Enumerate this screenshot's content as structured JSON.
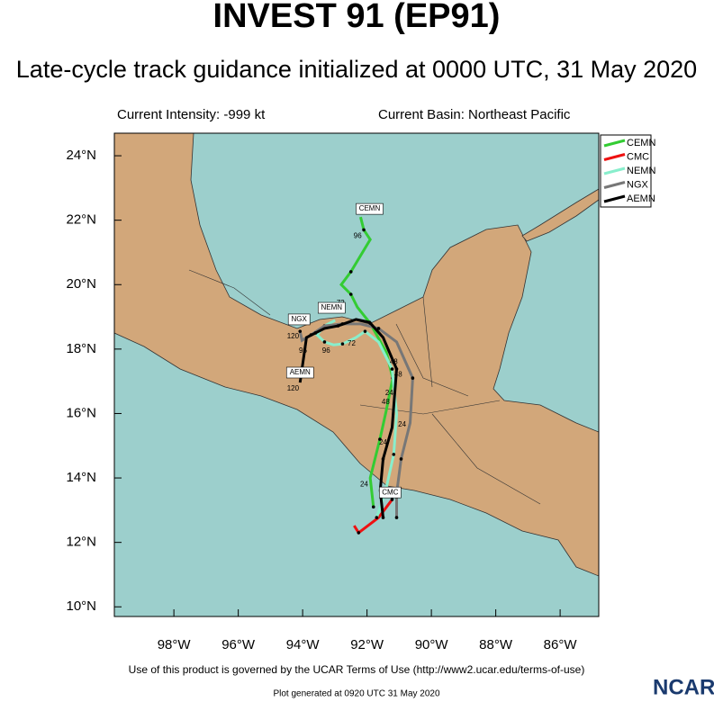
{
  "title": "INVEST 91 (EP91)",
  "subtitle": "Late-cycle track guidance initialized at 0000 UTC, 31 May 2020",
  "intensity": "Current Intensity: -999 kt",
  "basin": "Current Basin: Northeast Pacific",
  "map": {
    "lonlim": [
      -99.85,
      -84.8
    ],
    "latlim": [
      9.7,
      24.7
    ],
    "lonticks": [
      {
        "value": -98,
        "label": "98°W"
      },
      {
        "value": -96,
        "label": "96°W"
      },
      {
        "value": -94,
        "label": "94°W"
      },
      {
        "value": -92,
        "label": "92°W"
      },
      {
        "value": -90,
        "label": "90°W"
      },
      {
        "value": -88,
        "label": "88°W"
      },
      {
        "value": -86,
        "label": "86°W"
      }
    ],
    "latticks": [
      {
        "value": 24,
        "label": "24°N"
      },
      {
        "value": 22,
        "label": "22°N"
      },
      {
        "value": 20,
        "label": "20°N"
      },
      {
        "value": 18,
        "label": "18°N"
      },
      {
        "value": 16,
        "label": "16°N"
      },
      {
        "value": 14,
        "label": "14°N"
      },
      {
        "value": 12,
        "label": "12°N"
      },
      {
        "value": 10,
        "label": "10°N"
      }
    ]
  },
  "tracks": [
    {
      "name": "CEMN",
      "color": "#33cc33",
      "lon": [
        -91.8,
        -91.9,
        -91.6,
        -91.4,
        -91.2,
        -91.4,
        -91.9,
        -92.3,
        -92.5,
        -92.8,
        -92.5,
        -91.9,
        -92.1,
        -92.2
      ],
      "lat": [
        13.1,
        14.0,
        15.2,
        16.1,
        17.1,
        17.9,
        18.8,
        19.3,
        19.7,
        20.0,
        20.4,
        21.4,
        21.7,
        22.1
      ]
    },
    {
      "name": "CMC",
      "color": "#ee1111",
      "lon": [
        -91.22,
        -91.64,
        -92.26,
        -92.4
      ],
      "lat": [
        13.33,
        12.77,
        12.3,
        12.52
      ]
    },
    {
      "name": "NEMN",
      "color": "#88eecc",
      "lon": [
        -91.7,
        -91.42,
        -91.17,
        -91.08,
        -91.22,
        -91.64,
        -92.06,
        -92.34,
        -92.76,
        -93.04,
        -93.32,
        -93.55,
        -93.32,
        -92.99
      ],
      "lat": [
        12.77,
        13.61,
        14.73,
        15.98,
        17.38,
        18.22,
        18.55,
        18.36,
        18.16,
        18.13,
        18.22,
        18.44,
        18.72,
        18.89
      ]
    },
    {
      "name": "NGX",
      "color": "#777777",
      "lon": [
        -91.08,
        -91.08,
        -90.94,
        -90.66,
        -90.58,
        -91.08,
        -91.64,
        -92.2,
        -92.76,
        -93.32,
        -93.74,
        -94.02,
        -94.08
      ],
      "lat": [
        12.77,
        13.52,
        14.59,
        15.71,
        17.1,
        18.22,
        18.64,
        18.78,
        18.78,
        18.72,
        18.44,
        18.27,
        18.55
      ]
    },
    {
      "name": "AEMN",
      "color": "#000000",
      "lon": [
        -91.5,
        -91.59,
        -91.5,
        -91.22,
        -91.08,
        -91.5,
        -91.92,
        -92.34,
        -92.9,
        -93.32,
        -93.6,
        -93.88,
        -94.02,
        -94.08
      ],
      "lat": [
        12.77,
        13.61,
        14.59,
        15.57,
        17.38,
        18.36,
        18.83,
        18.92,
        18.72,
        18.64,
        18.5,
        18.36,
        17.38,
        16.96
      ]
    }
  ],
  "track_labels": [
    {
      "text": "CEMN",
      "lon": -91.92,
      "lat": 22.35
    },
    {
      "text": "NEMN",
      "lon": -93.1,
      "lat": 19.28
    },
    {
      "text": "NGX",
      "lon": -94.11,
      "lat": 18.92
    },
    {
      "text": "AEMN",
      "lon": -94.08,
      "lat": 17.27
    },
    {
      "text": "CMC",
      "lon": -91.28,
      "lat": 13.55
    }
  ],
  "hour_labels": [
    {
      "text": "96",
      "lon": -92.29,
      "lat": 21.51
    },
    {
      "text": "72",
      "lon": -92.82,
      "lat": 19.42
    },
    {
      "text": "24",
      "lon": -92.09,
      "lat": 13.8
    },
    {
      "text": "24",
      "lon": -91.5,
      "lat": 15.09
    },
    {
      "text": "48",
      "lon": -91.42,
      "lat": 16.35
    },
    {
      "text": "48",
      "lon": -91.17,
      "lat": 17.6
    },
    {
      "text": "24",
      "lon": -90.91,
      "lat": 15.65
    },
    {
      "text": "72",
      "lon": -92.48,
      "lat": 18.16
    },
    {
      "text": "96",
      "lon": -93.27,
      "lat": 17.94
    },
    {
      "text": "120",
      "lon": -94.3,
      "lat": 18.39
    },
    {
      "text": "96",
      "lon": -93.99,
      "lat": 17.94
    },
    {
      "text": "120",
      "lon": -94.3,
      "lat": 16.77
    },
    {
      "text": "48",
      "lon": -91.03,
      "lat": 17.21
    },
    {
      "text": "24",
      "lon": -91.31,
      "lat": 16.63
    }
  ],
  "footer": {
    "terms": "Use of this product is governed by the UCAR Terms of Use (http://www2.ucar.edu/terms-of-use)",
    "generated": "Plot generated at 0920 UTC  31 May 2020",
    "logo": "NCAR"
  }
}
